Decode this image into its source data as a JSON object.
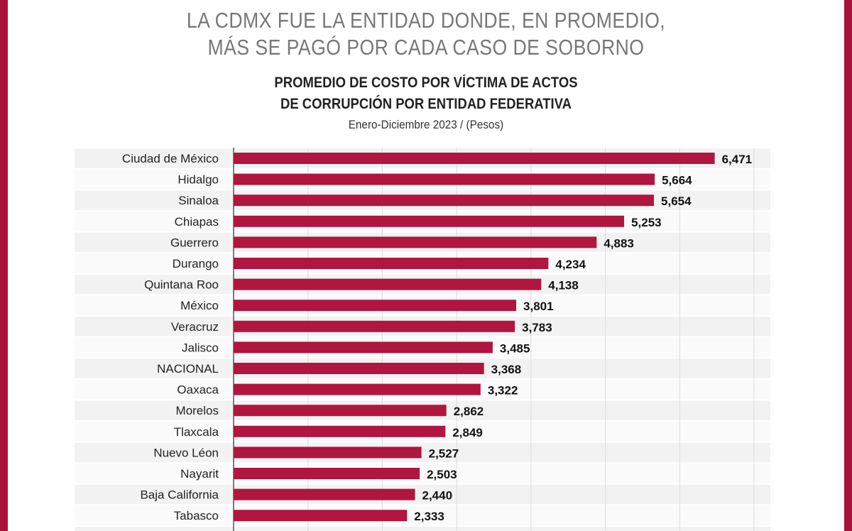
{
  "headline": [
    "LA CDMX FUE LA ENTIDAD DONDE, EN PROMEDIO,",
    "MÁS SE PAGÓ POR CADA CASO DE SOBORNO"
  ],
  "chart_data": {
    "type": "bar",
    "orientation": "horizontal",
    "title": [
      "PROMEDIO DE COSTO POR VÍCTIMA DE ACTOS",
      "DE CORRUPCIÓN POR ENTIDAD FEDERATIVA"
    ],
    "subtitle": "Enero-Diciembre 2023 / (Pesos)",
    "categories": [
      "Ciudad de México",
      "Hidalgo",
      "Sinaloa",
      "Chiapas",
      "Guerrero",
      "Durango",
      "Quintana Roo",
      "México",
      "Veracruz",
      "Jalisco",
      "NACIONAL",
      "Oaxaca",
      "Morelos",
      "Tlaxcala",
      "Nuevo Léon",
      "Nayarit",
      "Baja California",
      "Tabasco"
    ],
    "values": [
      6471,
      5664,
      5654,
      5253,
      4883,
      4234,
      4138,
      3801,
      3783,
      3485,
      3368,
      3322,
      2862,
      2849,
      2527,
      2503,
      2440,
      2333
    ],
    "value_labels": [
      "6,471",
      "5,664",
      "5,654",
      "5,253",
      "4,883",
      "4,234",
      "4,138",
      "3,801",
      "3,783",
      "3,485",
      "3,368",
      "3,322",
      "2,862",
      "2,849",
      "2,527",
      "2,503",
      "2,440",
      "2,333"
    ],
    "xlim": [
      0,
      7000
    ],
    "grid": true,
    "bar_color": "#b0163f",
    "frame_color": "#a8133c"
  }
}
